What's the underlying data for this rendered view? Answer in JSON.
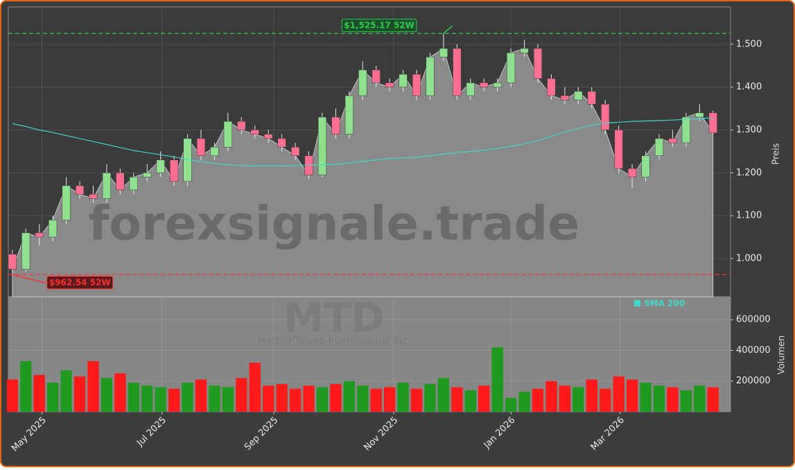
{
  "chart_data": {
    "type": "candlestick",
    "open": [
      1.01,
      0.975,
      1.06,
      1.05,
      1.09,
      1.17,
      1.15,
      1.14,
      1.2,
      1.16,
      1.19,
      1.2,
      1.23,
      1.18,
      1.28,
      1.24,
      1.26,
      1.32,
      1.3,
      1.29,
      1.28,
      1.26,
      1.24,
      1.195,
      1.33,
      1.29,
      1.38,
      1.44,
      1.41,
      1.4,
      1.43,
      1.38,
      1.47,
      1.49,
      1.38,
      1.41,
      1.4,
      1.41,
      1.48,
      1.49,
      1.42,
      1.38,
      1.37,
      1.39,
      1.36,
      1.3,
      1.21,
      1.19,
      1.24,
      1.28,
      1.27,
      1.33,
      1.34
    ],
    "high": [
      1.02,
      1.07,
      1.08,
      1.1,
      1.19,
      1.18,
      1.17,
      1.22,
      1.21,
      1.2,
      1.22,
      1.25,
      1.24,
      1.29,
      1.3,
      1.27,
      1.34,
      1.33,
      1.31,
      1.3,
      1.29,
      1.27,
      1.25,
      1.34,
      1.35,
      1.39,
      1.46,
      1.45,
      1.42,
      1.44,
      1.44,
      1.48,
      1.52517,
      1.5,
      1.42,
      1.42,
      1.42,
      1.49,
      1.51,
      1.5,
      1.43,
      1.4,
      1.4,
      1.4,
      1.37,
      1.31,
      1.22,
      1.25,
      1.29,
      1.3,
      1.34,
      1.36,
      1.345
    ],
    "low": [
      0.96254,
      0.97,
      1.03,
      1.04,
      1.08,
      1.14,
      1.13,
      1.13,
      1.15,
      1.15,
      1.18,
      1.19,
      1.17,
      1.17,
      1.23,
      1.23,
      1.25,
      1.29,
      1.28,
      1.27,
      1.25,
      1.23,
      1.185,
      1.19,
      1.28,
      1.28,
      1.37,
      1.4,
      1.39,
      1.39,
      1.37,
      1.37,
      1.46,
      1.37,
      1.37,
      1.39,
      1.39,
      1.4,
      1.47,
      1.41,
      1.37,
      1.36,
      1.36,
      1.35,
      1.29,
      1.2,
      1.165,
      1.18,
      1.23,
      1.26,
      1.26,
      1.32,
      1.29
    ],
    "close": [
      0.975,
      1.06,
      1.05,
      1.09,
      1.17,
      1.15,
      1.14,
      1.2,
      1.16,
      1.19,
      1.2,
      1.23,
      1.18,
      1.28,
      1.24,
      1.26,
      1.32,
      1.3,
      1.29,
      1.28,
      1.26,
      1.24,
      1.195,
      1.33,
      1.29,
      1.38,
      1.44,
      1.41,
      1.4,
      1.43,
      1.38,
      1.47,
      1.49,
      1.38,
      1.41,
      1.4,
      1.41,
      1.48,
      1.49,
      1.42,
      1.38,
      1.37,
      1.39,
      1.36,
      1.3,
      1.21,
      1.19,
      1.24,
      1.28,
      1.27,
      1.33,
      1.34,
      1.293
    ],
    "volume": [
      210000,
      330000,
      240000,
      190000,
      270000,
      230000,
      330000,
      220000,
      250000,
      190000,
      170000,
      160000,
      150000,
      190000,
      210000,
      170000,
      160000,
      220000,
      320000,
      170000,
      180000,
      150000,
      170000,
      160000,
      180000,
      200000,
      170000,
      150000,
      160000,
      190000,
      150000,
      180000,
      220000,
      160000,
      140000,
      170000,
      420000,
      90000,
      130000,
      150000,
      200000,
      170000,
      160000,
      210000,
      150000,
      230000,
      210000,
      190000,
      170000,
      160000,
      140000,
      170000,
      160000
    ],
    "up_color": "#8fe08f",
    "down_color": "#ff6f91",
    "volume_up_color": "#1f9a1f",
    "volume_down_color": "#ff1a1a",
    "area_color": "#8a8a8a",
    "series": [
      {
        "name": "SMA 200",
        "color": "#40d8c8",
        "values": [
          1.315,
          1.308,
          1.3,
          1.294,
          1.287,
          1.28,
          1.273,
          1.266,
          1.259,
          1.252,
          1.247,
          1.242,
          1.237,
          1.231,
          1.226,
          1.222,
          1.219,
          1.217,
          1.216,
          1.216,
          1.216,
          1.217,
          1.218,
          1.219,
          1.22,
          1.223,
          1.227,
          1.23,
          1.233,
          1.235,
          1.236,
          1.24,
          1.244,
          1.247,
          1.25,
          1.253,
          1.257,
          1.262,
          1.268,
          1.275,
          1.285,
          1.295,
          1.303,
          1.311,
          1.316,
          1.318,
          1.32,
          1.321,
          1.322,
          1.323,
          1.325,
          1.327,
          1.328
        ]
      }
    ],
    "xlim": [
      -0.3,
      53.3
    ],
    "xticks": [
      {
        "value": 2.2,
        "label": "May 2025"
      },
      {
        "value": 11.1,
        "label": "Jul 2025"
      },
      {
        "value": 19.4,
        "label": "Sep 2025"
      },
      {
        "value": 28.3,
        "label": "Nov 2025"
      },
      {
        "value": 37.0,
        "label": "Jan 2026"
      },
      {
        "value": 45.1,
        "label": "Mar 2026"
      }
    ],
    "ylim": [
      0.911,
      1.587
    ],
    "yticks": [
      {
        "value": 1.0,
        "label": "1.000"
      },
      {
        "value": 1.1,
        "label": "1.100"
      },
      {
        "value": 1.2,
        "label": "1.200"
      },
      {
        "value": 1.3,
        "label": "1.300"
      },
      {
        "value": 1.4,
        "label": "1.400"
      },
      {
        "value": 1.5,
        "label": "1.500"
      }
    ],
    "y2lim": [
      0,
      750000
    ],
    "y2ticks": [
      200000,
      400000,
      600000
    ],
    "ylabel": "Preis",
    "y2label": "Volumen",
    "high_annotation": {
      "value": 1.52517,
      "label": "$1,525.17 52W",
      "x": 32
    },
    "low_annotation": {
      "value": 0.96254,
      "label": "$962.54 52W",
      "x": 0
    },
    "watermark": "forexsignale.trade",
    "ticker": "MTD",
    "company": "Mettler-Toledo International Inc.",
    "grid": true
  }
}
